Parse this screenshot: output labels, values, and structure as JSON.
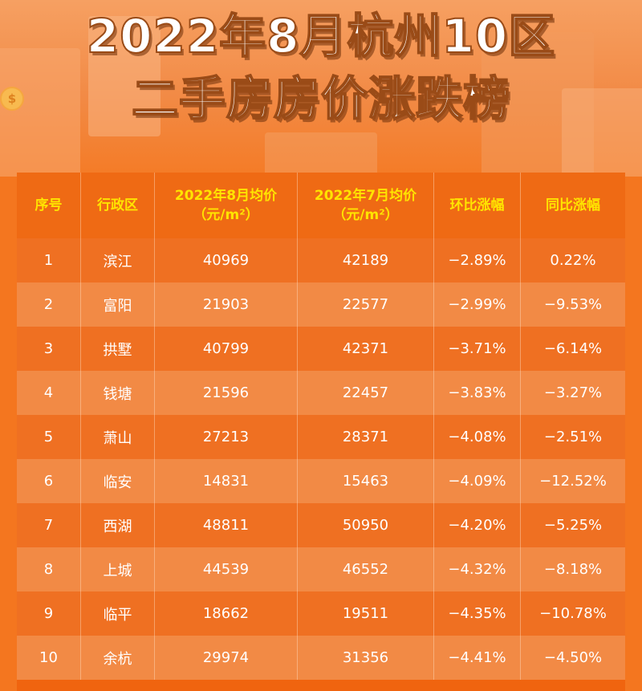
{
  "title": {
    "line1": "2022年8月杭州10区",
    "line2": "二手房房价涨跌榜"
  },
  "decor": {
    "coin_symbol": "$"
  },
  "table": {
    "headers": [
      {
        "line1": "序号",
        "line2": ""
      },
      {
        "line1": "行政区",
        "line2": ""
      },
      {
        "line1": "2022年8月均价",
        "line2": "（元/m²）"
      },
      {
        "line1": "2022年7月均价",
        "line2": "（元/m²）"
      },
      {
        "line1": "环比涨幅",
        "line2": ""
      },
      {
        "line1": "同比涨幅",
        "line2": ""
      }
    ],
    "rows": [
      {
        "rank": "1",
        "district": "滨江",
        "aug_price": "40969",
        "jul_price": "42189",
        "mom": "−2.89%",
        "yoy": "0.22%"
      },
      {
        "rank": "2",
        "district": "富阳",
        "aug_price": "21903",
        "jul_price": "22577",
        "mom": "−2.99%",
        "yoy": "−9.53%"
      },
      {
        "rank": "3",
        "district": "拱墅",
        "aug_price": "40799",
        "jul_price": "42371",
        "mom": "−3.71%",
        "yoy": "−6.14%"
      },
      {
        "rank": "4",
        "district": "钱塘",
        "aug_price": "21596",
        "jul_price": "22457",
        "mom": "−3.83%",
        "yoy": "−3.27%"
      },
      {
        "rank": "5",
        "district": "萧山",
        "aug_price": "27213",
        "jul_price": "28371",
        "mom": "−4.08%",
        "yoy": "−2.51%"
      },
      {
        "rank": "6",
        "district": "临安",
        "aug_price": "14831",
        "jul_price": "15463",
        "mom": "−4.09%",
        "yoy": "−12.52%"
      },
      {
        "rank": "7",
        "district": "西湖",
        "aug_price": "48811",
        "jul_price": "50950",
        "mom": "−4.20%",
        "yoy": "−5.25%"
      },
      {
        "rank": "8",
        "district": "上城",
        "aug_price": "44539",
        "jul_price": "46552",
        "mom": "−4.32%",
        "yoy": "−8.18%"
      },
      {
        "rank": "9",
        "district": "临平",
        "aug_price": "18662",
        "jul_price": "19511",
        "mom": "−4.35%",
        "yoy": "−10.78%"
      },
      {
        "rank": "10",
        "district": "余杭",
        "aug_price": "29974",
        "jul_price": "31356",
        "mom": "−4.41%",
        "yoy": "−4.50%"
      }
    ]
  },
  "colors": {
    "header_text": "#ffe400",
    "row_dark": "#ef7022",
    "row_light": "#f28a45",
    "page_bg": "#f4761f"
  }
}
